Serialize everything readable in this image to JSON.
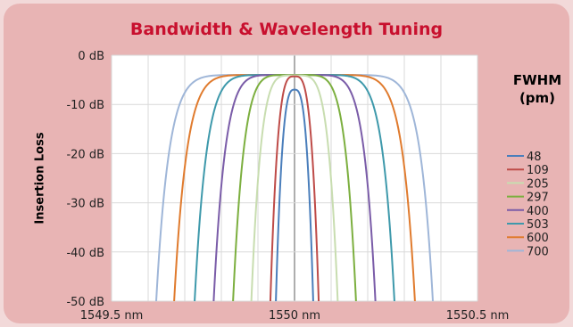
{
  "chart_data": {
    "type": "line",
    "title": "Bandwidth & Wavelength Tuning",
    "xlabel": "",
    "ylabel": "Insertion Loss",
    "xlim": [
      1549.5,
      1550.5
    ],
    "ylim": [
      -50,
      0
    ],
    "x_ticks": [
      "1549.5 nm",
      "1550 nm",
      "1550.5 nm"
    ],
    "y_ticks": [
      "0 dB",
      "-10 dB",
      "-20 dB",
      "-30 dB",
      "-40 dB",
      "-50 dB"
    ],
    "grid": true,
    "legend_title": [
      "FWHM",
      "(pm)"
    ],
    "legend_placement": "right",
    "series": [
      {
        "name": "48",
        "color": "#4a7ebb",
        "center": 1550.0,
        "peak": -7.0,
        "fwhm_nm": 0.048,
        "edge_x_at_-50": [
          1549.949,
          1550.051
        ]
      },
      {
        "name": "109",
        "color": "#be4b48",
        "center": 1550.0,
        "peak": -4.3,
        "fwhm_nm": 0.109,
        "edge_x_at_-50": [
          1549.934,
          1550.066
        ]
      },
      {
        "name": "205",
        "color": "#c8ddb0",
        "center": 1550.0,
        "peak": -4.1,
        "fwhm_nm": 0.205,
        "edge_x_at_-50": [
          1549.882,
          1550.118
        ]
      },
      {
        "name": "297",
        "color": "#7caf3f",
        "center": 1550.0,
        "peak": -4.0,
        "fwhm_nm": 0.297,
        "edge_x_at_-50": [
          1549.832,
          1550.168
        ]
      },
      {
        "name": "400",
        "color": "#7a5ca8",
        "center": 1550.0,
        "peak": -4.0,
        "fwhm_nm": 0.4,
        "edge_x_at_-50": [
          1549.779,
          1550.221
        ]
      },
      {
        "name": "503",
        "color": "#3e99ab",
        "center": 1550.0,
        "peak": -4.0,
        "fwhm_nm": 0.503,
        "edge_x_at_-50": [
          1549.727,
          1550.273
        ]
      },
      {
        "name": "600",
        "color": "#e07b2e",
        "center": 1550.0,
        "peak": -4.0,
        "fwhm_nm": 0.6,
        "edge_x_at_-50": [
          1549.671,
          1550.329
        ]
      },
      {
        "name": "700",
        "color": "#9fb6d8",
        "center": 1550.0,
        "peak": -4.0,
        "fwhm_nm": 0.7,
        "edge_x_at_-50": [
          1549.622,
          1550.378
        ]
      }
    ]
  }
}
